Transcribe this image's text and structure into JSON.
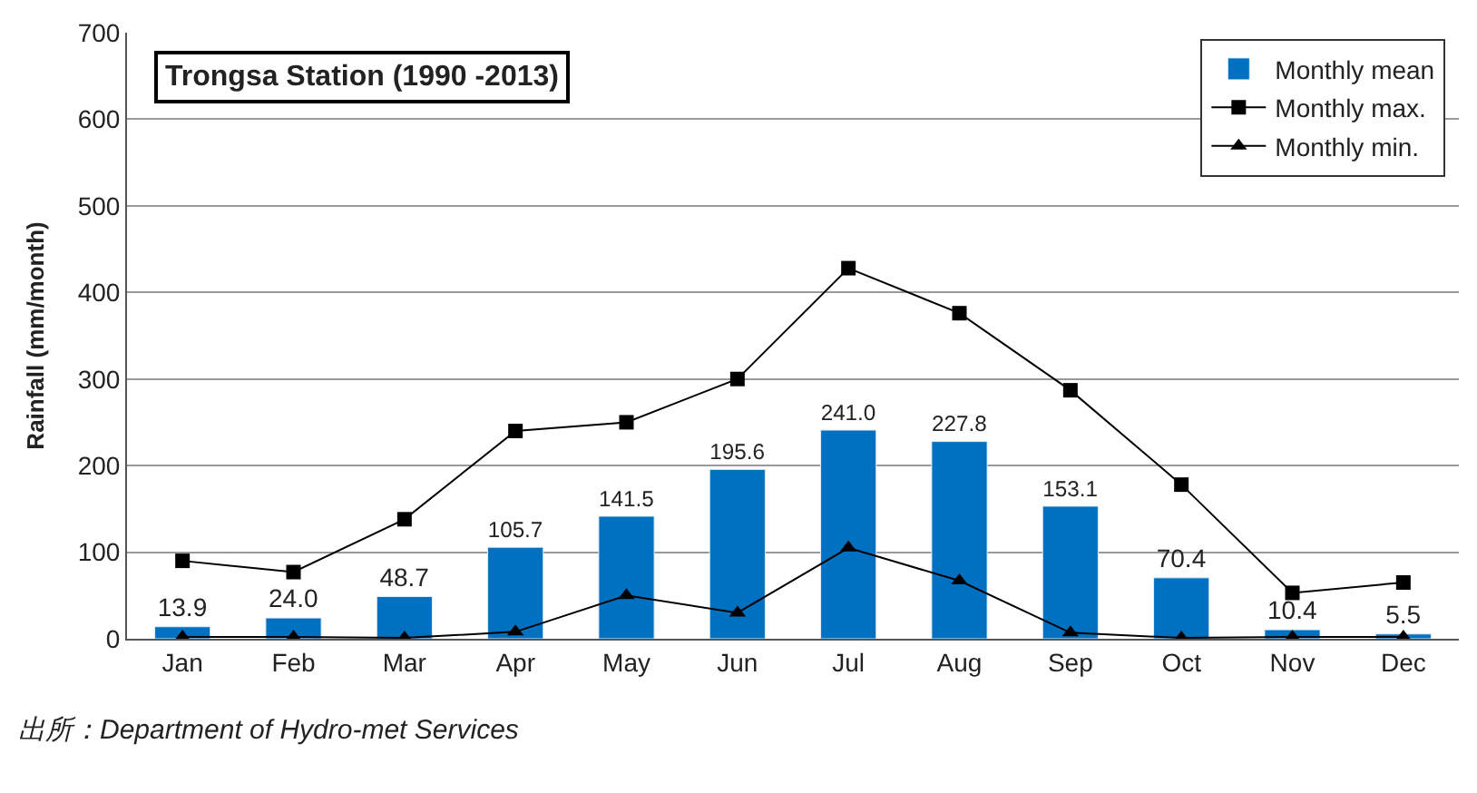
{
  "chart_data": {
    "type": "bar",
    "title": "Trongsa Station (1990 -2013)",
    "ylabel": "Rainfall (mm/month)",
    "categories": [
      "Jan",
      "Feb",
      "Mar",
      "Apr",
      "May",
      "Jun",
      "Jul",
      "Aug",
      "Sep",
      "Oct",
      "Nov",
      "Dec"
    ],
    "series": [
      {
        "name": "Monthly mean",
        "color": "#0070c0",
        "values": [
          13.9,
          24.0,
          48.7,
          105.7,
          141.5,
          195.6,
          241.0,
          227.8,
          153.1,
          70.4,
          10.4,
          5.5
        ],
        "value_labels": [
          "13.9",
          "24.0",
          "48.7",
          "105.7",
          "141.5",
          "195.6",
          "241.0",
          "227.8",
          "153.1",
          "70.4",
          "10.4",
          "5.5"
        ]
      },
      {
        "name": "Monthly max.",
        "type": "line",
        "color": "#000000",
        "marker": "square",
        "values": [
          90,
          77,
          138,
          240,
          250,
          300,
          428,
          376,
          287,
          178,
          53,
          65
        ]
      },
      {
        "name": "Monthly min.",
        "type": "line",
        "color": "#000000",
        "marker": "triangle",
        "values": [
          2,
          2,
          1,
          8,
          50,
          30,
          105,
          67,
          7,
          1,
          2,
          2
        ]
      }
    ],
    "ylim": [
      0,
      700
    ],
    "yticks": [
      0,
      100,
      200,
      300,
      400,
      500,
      600,
      700
    ],
    "grid": "y",
    "legend": "top right",
    "annotations": [
      "出所：Department of Hydro-met Services"
    ]
  }
}
